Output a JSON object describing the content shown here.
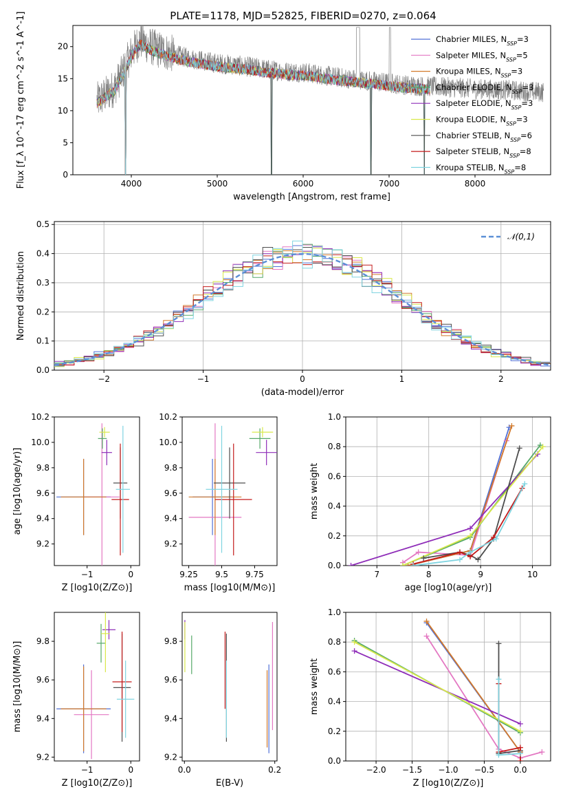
{
  "figure": {
    "title": "PLATE=1178, MJD=52825, FIBERID=0270, z=0.064"
  },
  "colors": {
    "Chabrier MILES": "#4f6fd6",
    "Salpeter MILES": "#e377c2",
    "Kroupa MILES": "#d2792a",
    "Chabrier ELODIE": "#55a868",
    "Salpeter ELODIE": "#8e2cb8",
    "Kroupa ELODIE": "#d8e84a",
    "Chabrier STELIB": "#4d4d4d",
    "Salpeter STELIB": "#c41a1a",
    "Kroupa STELIB": "#7fd4e0",
    "data": "#808080",
    "normal": "#5b8fd6"
  },
  "chart_data": [
    {
      "type": "line",
      "name": "spectrum",
      "title": "PLATE=1178, MJD=52825, FIBERID=0270, z=0.064",
      "xlabel": "wavelength [Angstrom, rest frame]",
      "ylabel": "Flux [f_λ 10^-17 erg cm^-2 s^-1 A^-1]",
      "xlim": [
        3320,
        8880
      ],
      "ylim": [
        0,
        23.3
      ],
      "xticks": [
        4000,
        5000,
        6000,
        7000,
        8000
      ],
      "yticks": [
        0,
        5,
        10,
        15,
        20
      ],
      "legend_position": "upper right",
      "legend": [
        {
          "name": "Chabrier MILES",
          "nssp": "3"
        },
        {
          "name": "Salpeter MILES",
          "nssp": "5"
        },
        {
          "name": "Kroupa MILES",
          "nssp": "3"
        },
        {
          "name": "Chabrier ELODIE",
          "nssp": "3"
        },
        {
          "name": "Salpeter ELODIE",
          "nssp": "3"
        },
        {
          "name": "Kroupa ELODIE",
          "nssp": "3"
        },
        {
          "name": "Chabrier STELIB",
          "nssp": "6"
        },
        {
          "name": "Salpeter STELIB",
          "nssp": "8"
        },
        {
          "name": "Kroupa STELIB",
          "nssp": "8"
        }
      ],
      "data_envelope": {
        "x": [
          3600,
          3700,
          3800,
          3900,
          4000,
          4100,
          4200,
          4300,
          4400,
          4500,
          4600,
          4700,
          4800,
          4900,
          5000,
          5200,
          5400,
          5600,
          5800,
          6000,
          6200,
          6400,
          6600,
          6800,
          7000,
          7200,
          7400,
          7600,
          7800,
          8000,
          8200,
          8400,
          8600,
          8800
        ],
        "y": [
          11.5,
          12.5,
          13.5,
          16.0,
          19.0,
          21.0,
          20.2,
          19.6,
          19.2,
          18.8,
          18.4,
          18.1,
          17.9,
          17.6,
          17.4,
          17.1,
          16.8,
          16.4,
          16.1,
          16.0,
          15.6,
          15.2,
          14.9,
          14.6,
          14.3,
          14.0,
          13.8,
          13.7,
          13.6,
          13.4,
          13.3,
          13.2,
          13.0,
          12.9
        ]
      },
      "absorption_dips": [
        {
          "x": 3934,
          "y": 0.0
        },
        {
          "x": 5630,
          "y": 0.0
        },
        {
          "x": 6790,
          "y": 0.0
        },
        {
          "x": 7410,
          "y": 0.0
        }
      ],
      "model_range_x": [
        3600,
        7480
      ]
    },
    {
      "type": "area",
      "name": "residual_histogram",
      "xlabel": "(data-model)/error",
      "ylabel": "Normed distribution",
      "xlim": [
        -2.5,
        2.5
      ],
      "ylim": [
        0,
        0.51
      ],
      "xticks": [
        -2,
        -1,
        0,
        1,
        2
      ],
      "yticks": [
        0.0,
        0.1,
        0.2,
        0.3,
        0.4,
        0.5
      ],
      "legend": [
        "𝒩(0,1)"
      ],
      "legend_position": "upper right",
      "bin_edges": [
        -2.5,
        -2.4,
        -2.3,
        -2.2,
        -2.1,
        -2.0,
        -1.9,
        -1.8,
        -1.7,
        -1.6,
        -1.5,
        -1.4,
        -1.3,
        -1.2,
        -1.1,
        -1.0,
        -0.9,
        -0.8,
        -0.7,
        -0.6,
        -0.5,
        -0.4,
        -0.3,
        -0.2,
        -0.1,
        0.0,
        0.1,
        0.2,
        0.3,
        0.4,
        0.5,
        0.6,
        0.7,
        0.8,
        0.9,
        1.0,
        1.1,
        1.2,
        1.3,
        1.4,
        1.5,
        1.6,
        1.7,
        1.8,
        1.9,
        2.0,
        2.1,
        2.2,
        2.3,
        2.4,
        2.5
      ]
    },
    {
      "type": "scatter",
      "name": "age_vs_Z",
      "xlabel": "Z [log10(Z/Z⊙)]",
      "ylabel": "age [log10(age/yr)]",
      "xlim": [
        -1.75,
        0.2
      ],
      "ylim": [
        9.03,
        10.2
      ],
      "xticks": [
        -1,
        0
      ],
      "yticks": [
        9.2,
        9.4,
        9.6,
        9.8,
        10.0,
        10.2
      ],
      "points": [
        {
          "model": "Chabrier MILES",
          "x": -1.08,
          "y": 9.57,
          "xerr": 0.62,
          "yerr": 0.3
        },
        {
          "model": "Salpeter MILES",
          "x": -0.66,
          "y": 9.57,
          "xerr": 0.4,
          "yerr": 0.58
        },
        {
          "model": "Kroupa MILES",
          "x": -1.08,
          "y": 9.57,
          "xerr": 0.52,
          "yerr": 0.3
        },
        {
          "model": "Chabrier ELODIE",
          "x": -0.65,
          "y": 10.03,
          "xerr": 0.1,
          "yerr": 0.08
        },
        {
          "model": "Salpeter ELODIE",
          "x": -0.55,
          "y": 9.92,
          "xerr": 0.12,
          "yerr": 0.1
        },
        {
          "model": "Kroupa ELODIE",
          "x": -0.6,
          "y": 10.08,
          "xerr": 0.12,
          "yerr": 0.04
        },
        {
          "model": "Chabrier STELIB",
          "x": -0.24,
          "y": 9.68,
          "xerr": 0.16,
          "yerr": 0.28
        },
        {
          "model": "Salpeter STELIB",
          "x": -0.24,
          "y": 9.55,
          "xerr": 0.2,
          "yerr": 0.44
        },
        {
          "model": "Kroupa STELIB",
          "x": -0.18,
          "y": 9.63,
          "xerr": 0.16,
          "yerr": 0.5
        }
      ]
    },
    {
      "type": "scatter",
      "name": "age_vs_mass",
      "xlabel": "mass [log10(M/M⊙)]",
      "ylabel": "",
      "xlim": [
        9.2,
        9.92
      ],
      "ylim": [
        9.03,
        10.2
      ],
      "xticks": [
        9.25,
        9.5,
        9.75
      ],
      "yticks": [
        9.2,
        9.4,
        9.6,
        9.8,
        10.0,
        10.2
      ],
      "points": [
        {
          "model": "Chabrier MILES",
          "x": 9.43,
          "y": 9.57,
          "xerr": 0.15,
          "yerr": 0.3
        },
        {
          "model": "Salpeter MILES",
          "x": 9.45,
          "y": 9.41,
          "xerr": 0.2,
          "yerr": 0.74
        },
        {
          "model": "Kroupa MILES",
          "x": 9.45,
          "y": 9.57,
          "xerr": 0.2,
          "yerr": 0.3
        },
        {
          "model": "Chabrier ELODIE",
          "x": 9.79,
          "y": 10.03,
          "xerr": 0.08,
          "yerr": 0.08
        },
        {
          "model": "Salpeter ELODIE",
          "x": 9.84,
          "y": 9.92,
          "xerr": 0.08,
          "yerr": 0.1
        },
        {
          "model": "Kroupa ELODIE",
          "x": 9.81,
          "y": 10.08,
          "xerr": 0.08,
          "yerr": 0.04
        },
        {
          "model": "Chabrier STELIB",
          "x": 9.56,
          "y": 9.68,
          "xerr": 0.12,
          "yerr": 0.28
        },
        {
          "model": "Salpeter STELIB",
          "x": 9.59,
          "y": 9.55,
          "xerr": 0.14,
          "yerr": 0.44
        },
        {
          "model": "Kroupa STELIB",
          "x": 9.5,
          "y": 9.63,
          "xerr": 0.12,
          "yerr": 0.5
        }
      ]
    },
    {
      "type": "line",
      "name": "mass_weight_vs_age",
      "xlabel": "age [log10(age/yr)]",
      "ylabel": "mass weight",
      "xlim": [
        6.4,
        10.35
      ],
      "ylim": [
        0,
        1.0
      ],
      "xticks": [
        7,
        8,
        9,
        10
      ],
      "yticks": [
        0.0,
        0.2,
        0.4,
        0.6,
        0.8,
        1.0
      ],
      "series": [
        {
          "model": "Chabrier MILES",
          "x": [
            7.6,
            8.8,
            9.55
          ],
          "y": [
            0.0,
            0.1,
            0.93
          ]
        },
        {
          "model": "Salpeter MILES",
          "x": [
            7.5,
            7.8,
            8.8,
            9.5
          ],
          "y": [
            0.02,
            0.09,
            0.07,
            0.84
          ]
        },
        {
          "model": "Kroupa MILES",
          "x": [
            7.6,
            8.8,
            9.6
          ],
          "y": [
            0.0,
            0.1,
            0.94
          ]
        },
        {
          "model": "Chabrier ELODIE",
          "x": [
            7.5,
            8.8,
            10.15
          ],
          "y": [
            0.0,
            0.19,
            0.81
          ]
        },
        {
          "model": "Salpeter ELODIE",
          "x": [
            6.5,
            8.8,
            10.1
          ],
          "y": [
            0.0,
            0.25,
            0.75
          ]
        },
        {
          "model": "Kroupa ELODIE",
          "x": [
            7.5,
            8.8,
            10.2
          ],
          "y": [
            0.0,
            0.2,
            0.8
          ]
        },
        {
          "model": "Chabrier STELIB",
          "x": [
            7.9,
            8.6,
            8.8,
            8.95,
            9.25,
            9.75
          ],
          "y": [
            0.05,
            0.09,
            0.07,
            0.04,
            0.18,
            0.79
          ]
        },
        {
          "model": "Salpeter STELIB",
          "x": [
            7.7,
            8.6,
            8.8,
            9.25,
            9.8
          ],
          "y": [
            0.01,
            0.09,
            0.06,
            0.19,
            0.52
          ]
        },
        {
          "model": "Kroupa STELIB",
          "x": [
            7.7,
            8.6,
            8.8,
            9.3,
            9.85
          ],
          "y": [
            0.0,
            0.04,
            0.09,
            0.18,
            0.55
          ]
        }
      ]
    },
    {
      "type": "scatter",
      "name": "mass_vs_Z",
      "xlabel": "Z [log10(Z/Z⊙)]",
      "ylabel": "mass [log10(M/M⊙)]",
      "xlim": [
        -1.75,
        0.2
      ],
      "ylim": [
        9.18,
        9.95
      ],
      "xticks": [
        -1,
        0
      ],
      "yticks": [
        9.2,
        9.4,
        9.6,
        9.8
      ],
      "points": [
        {
          "model": "Chabrier MILES",
          "x": -1.08,
          "y": 9.45,
          "xerr": 0.62,
          "yerr": 0.23
        },
        {
          "model": "Salpeter MILES",
          "x": -0.9,
          "y": 9.42,
          "xerr": 0.4,
          "yerr": 0.23
        },
        {
          "model": "Kroupa MILES",
          "x": -1.08,
          "y": 9.45,
          "xerr": 0.52,
          "yerr": 0.22
        },
        {
          "model": "Chabrier ELODIE",
          "x": -0.68,
          "y": 9.79,
          "xerr": 0.1,
          "yerr": 0.1
        },
        {
          "model": "Salpeter ELODIE",
          "x": -0.5,
          "y": 9.86,
          "xerr": 0.15,
          "yerr": 0.05
        },
        {
          "model": "Kroupa ELODIE",
          "x": -0.58,
          "y": 9.84,
          "xerr": 0.1,
          "yerr": 0.2
        },
        {
          "model": "Chabrier STELIB",
          "x": -0.2,
          "y": 9.56,
          "xerr": 0.2,
          "yerr": 0.28
        },
        {
          "model": "Salpeter STELIB",
          "x": -0.2,
          "y": 9.59,
          "xerr": 0.22,
          "yerr": 0.26
        },
        {
          "model": "Kroupa STELIB",
          "x": -0.12,
          "y": 9.5,
          "xerr": 0.2,
          "yerr": 0.2
        }
      ]
    },
    {
      "type": "scatter",
      "name": "mass_vs_ebv",
      "xlabel": "E(B-V)",
      "ylabel": "",
      "xlim": [
        -0.005,
        0.205
      ],
      "ylim": [
        9.18,
        9.95
      ],
      "xticks": [
        0.0,
        0.2
      ],
      "yticks": [
        9.2,
        9.4,
        9.6,
        9.8
      ],
      "points": [
        {
          "model": "Chabrier MILES",
          "x": 0.187,
          "y": 9.45,
          "xerr": 0,
          "yerr": 0.23
        },
        {
          "model": "Salpeter MILES",
          "x": 0.195,
          "y": 9.62,
          "xerr": 0,
          "yerr": 0.28
        },
        {
          "model": "Kroupa MILES",
          "x": 0.183,
          "y": 9.45,
          "xerr": 0,
          "yerr": 0.2
        },
        {
          "model": "Chabrier ELODIE",
          "x": 0.016,
          "y": 9.73,
          "xerr": 0,
          "yerr": 0.1
        },
        {
          "model": "Salpeter ELODIE",
          "x": 0.001,
          "y": 9.86,
          "xerr": 0,
          "yerr": 0.05
        },
        {
          "model": "Kroupa ELODIE",
          "x": 0.001,
          "y": 9.77,
          "xerr": 0,
          "yerr": 0.13
        },
        {
          "model": "Chabrier STELIB",
          "x": 0.093,
          "y": 9.56,
          "xerr": 0,
          "yerr": 0.28
        },
        {
          "model": "Salpeter STELIB",
          "x": 0.09,
          "y": 9.65,
          "xerr": 0,
          "yerr": 0.2
        },
        {
          "model": "Kroupa STELIB",
          "x": 0.093,
          "y": 9.5,
          "xerr": 0,
          "yerr": 0.2
        }
      ]
    },
    {
      "type": "line",
      "name": "mass_weight_vs_Z",
      "xlabel": "Z [log10(Z/Z⊙)]",
      "ylabel": "mass weight",
      "xlim": [
        -2.42,
        0.42
      ],
      "ylim": [
        0,
        1.0
      ],
      "xticks": [
        -2.0,
        -1.5,
        -1.0,
        -0.5,
        0.0
      ],
      "yticks": [
        0.0,
        0.2,
        0.4,
        0.6,
        0.8,
        1.0
      ],
      "series": [
        {
          "model": "Chabrier MILES",
          "x": [
            -1.3,
            0.0
          ],
          "y": [
            0.93,
            0.06
          ]
        },
        {
          "model": "Salpeter MILES",
          "x": [
            -1.3,
            -0.3,
            0.0,
            0.3
          ],
          "y": [
            0.84,
            0.08,
            0.02,
            0.06
          ]
        },
        {
          "model": "Kroupa MILES",
          "x": [
            -1.3,
            0.0
          ],
          "y": [
            0.94,
            0.06
          ]
        },
        {
          "model": "Chabrier ELODIE",
          "x": [
            -2.3,
            0.0
          ],
          "y": [
            0.81,
            0.19
          ]
        },
        {
          "model": "Salpeter ELODIE",
          "x": [
            -2.3,
            0.0
          ],
          "y": [
            0.74,
            0.25
          ]
        },
        {
          "model": "Kroupa ELODIE",
          "x": [
            -2.3,
            0.0
          ],
          "y": [
            0.8,
            0.2
          ]
        },
        {
          "model": "Chabrier STELIB",
          "x": [
            -0.3,
            -0.3,
            0.0,
            0.0
          ],
          "y": [
            0.79,
            0.05,
            0.07,
            0.0
          ]
        },
        {
          "model": "Salpeter STELIB",
          "x": [
            -0.3,
            -0.3,
            0.0,
            0.0
          ],
          "y": [
            0.52,
            0.06,
            0.09,
            0.0
          ]
        },
        {
          "model": "Kroupa STELIB",
          "x": [
            -0.3,
            -0.3,
            0.0
          ],
          "y": [
            0.55,
            0.04,
            0.05
          ]
        }
      ]
    }
  ]
}
